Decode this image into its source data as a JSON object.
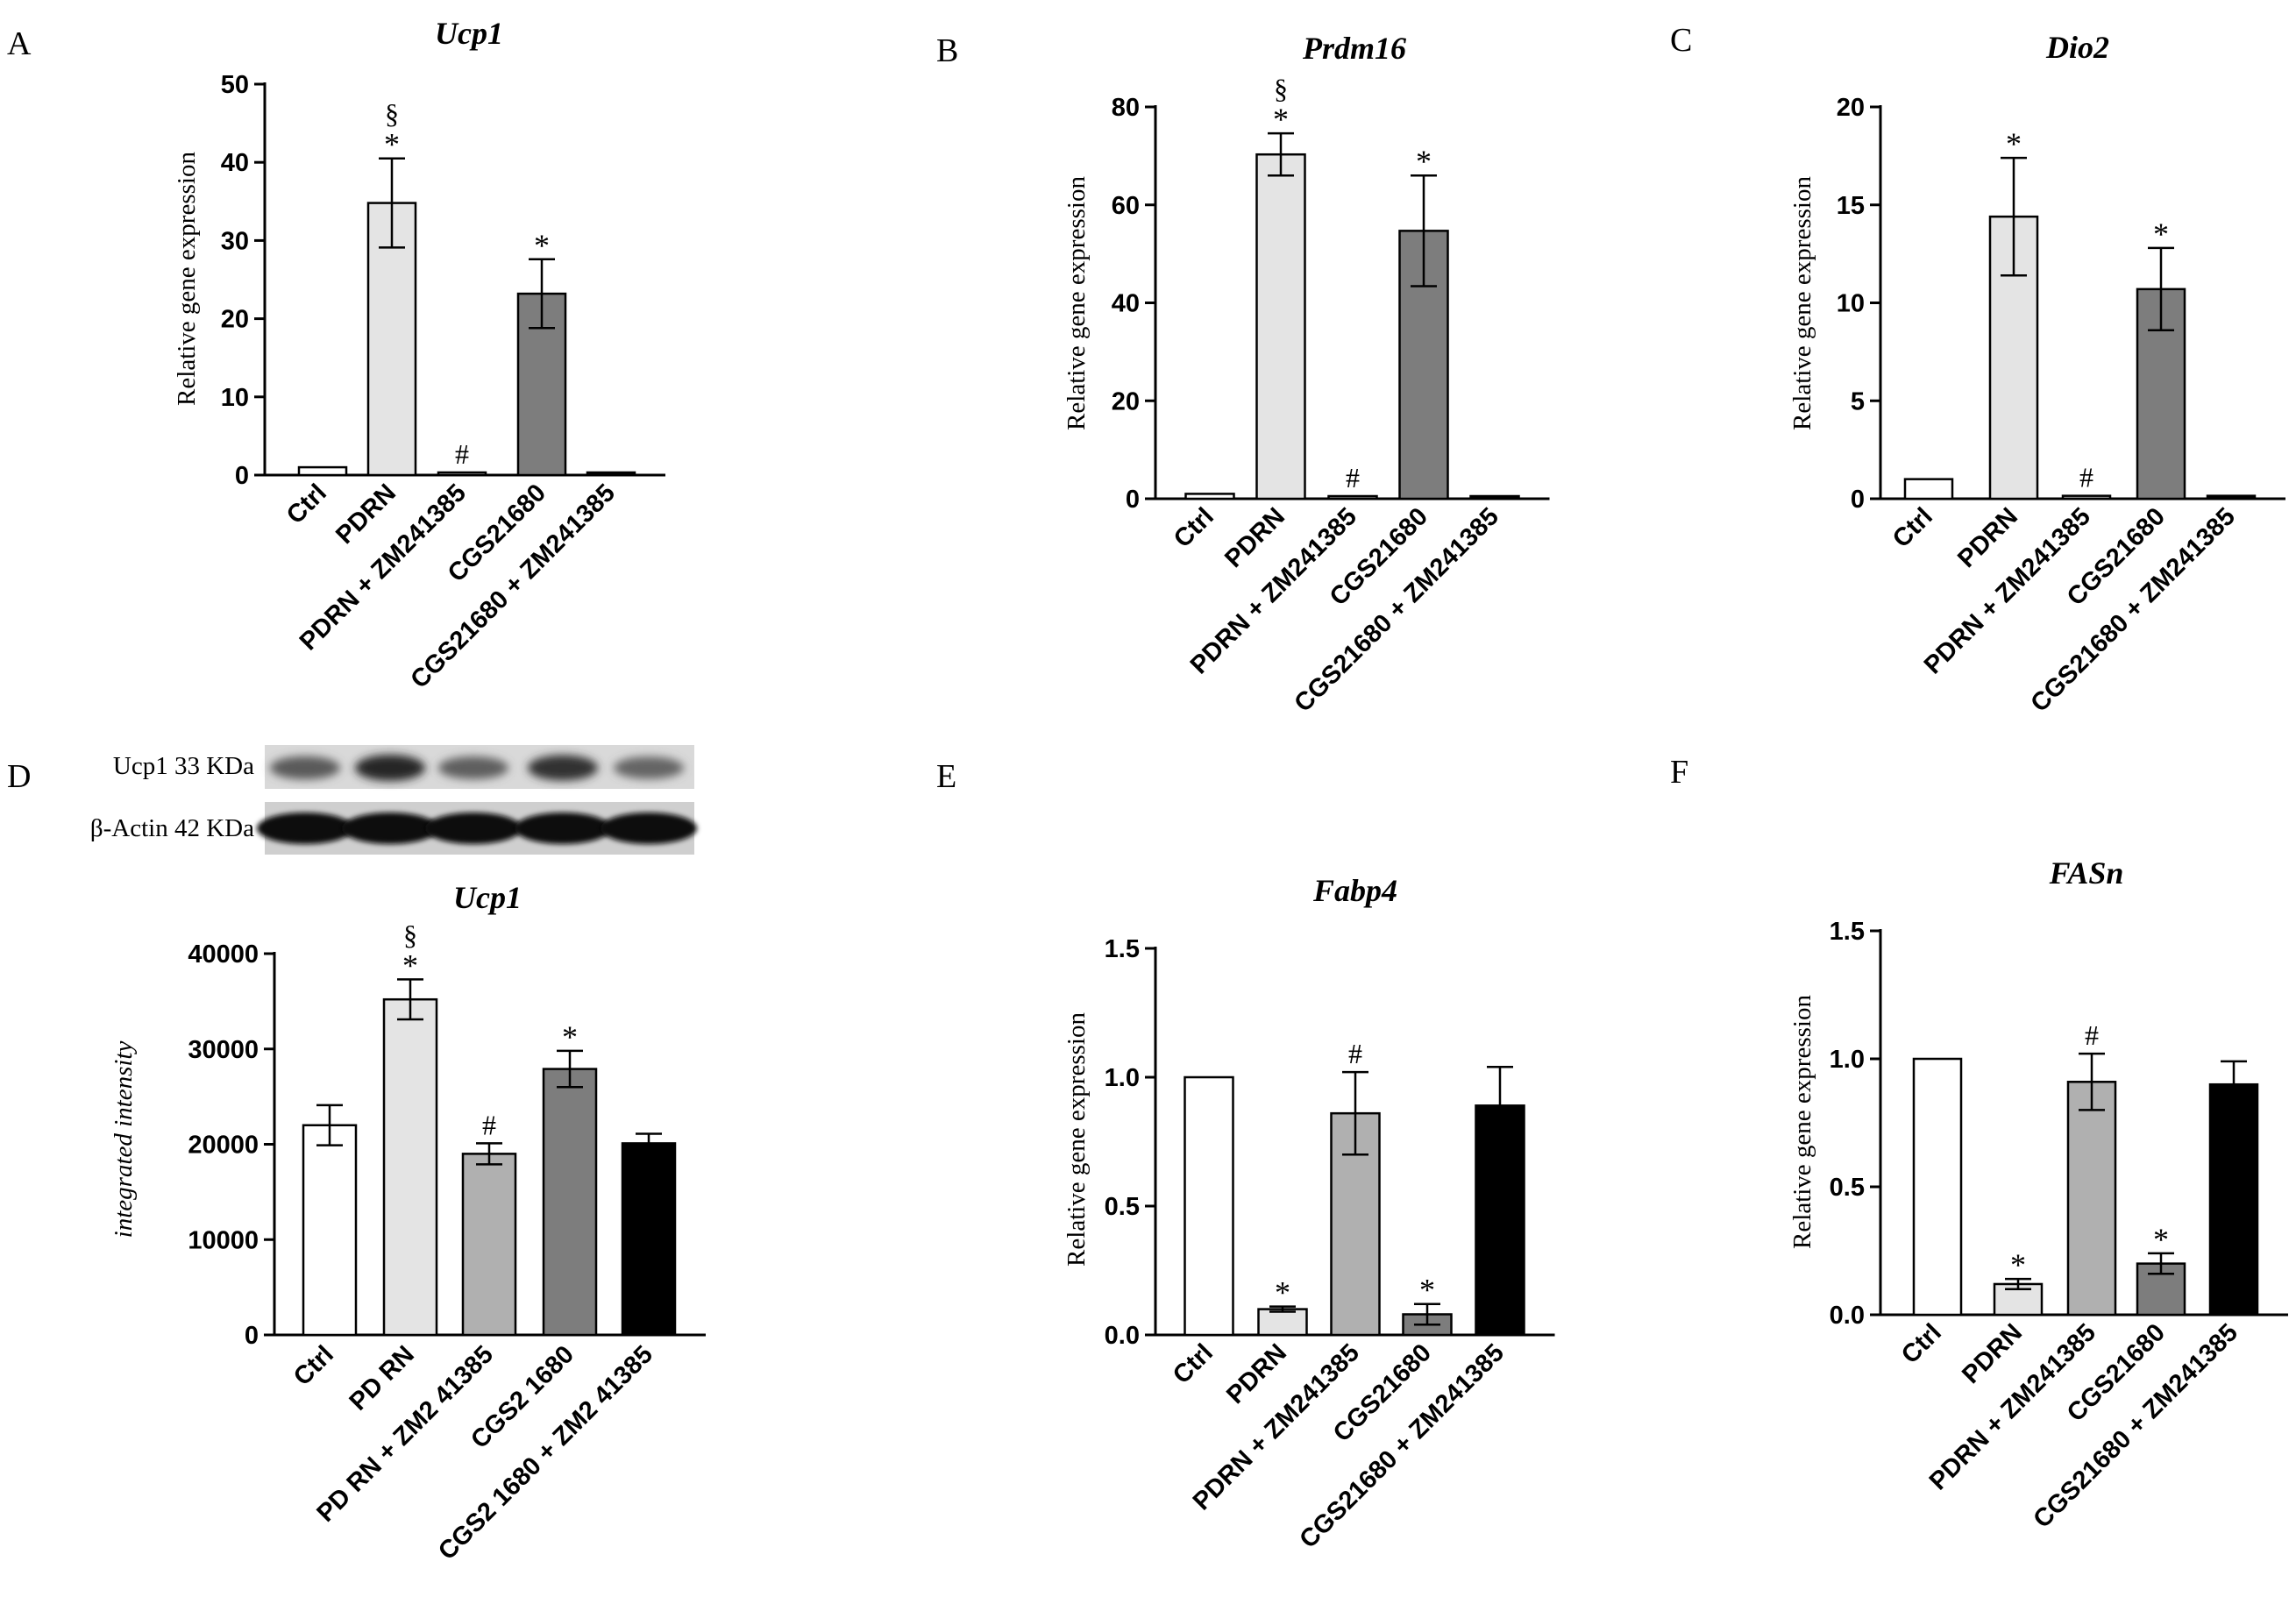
{
  "panel_letters": [
    "A",
    "B",
    "C",
    "D",
    "E",
    "F"
  ],
  "blot": {
    "labels": [
      "Ucp1 33 KDa",
      "β-Actin 42 KDa"
    ],
    "ucp1_relative_intensity": [
      0.55,
      1.0,
      0.5,
      0.9,
      0.45
    ]
  },
  "colors": {
    "Ctrl": "#ffffff",
    "PDRN": "#e4e4e4",
    "PDRN + ZM241385": "#b0b0b0",
    "CGS21680": "#7d7d7d",
    "CGS21680 + ZM241385": "#000000"
  },
  "chart_data": [
    {
      "panel": "A",
      "type": "bar",
      "title": "Ucp1",
      "ylabel": "Relative gene expression",
      "categories": [
        "Ctrl",
        "PDRN",
        "PDRN + ZM241385",
        "CGS21680",
        "CGS21680 + ZM241385"
      ],
      "values": [
        1,
        34.8,
        0.1,
        23.2,
        0.2
      ],
      "errors": [
        0,
        5.7,
        0,
        4.4,
        0
      ],
      "bar_colors": [
        "#ffffff",
        "#e4e4e4",
        "#b0b0b0",
        "#7d7d7d",
        "#000000"
      ],
      "annotations": [
        "",
        "§\n*",
        "#",
        "*",
        ""
      ],
      "ylim": [
        0,
        50
      ],
      "yticks": [
        "0",
        "10",
        "20",
        "30",
        "40",
        "50"
      ]
    },
    {
      "panel": "B",
      "type": "bar",
      "title": "Prdm16",
      "ylabel": "Relative gene expression",
      "categories": [
        "Ctrl",
        "PDRN",
        "PDRN + ZM241385",
        "CGS21680",
        "CGS21680 + ZM241385"
      ],
      "values": [
        1,
        70.3,
        0.1,
        54.7,
        0.1
      ],
      "errors": [
        0,
        4.3,
        0,
        11.3,
        0
      ],
      "bar_colors": [
        "#ffffff",
        "#e4e4e4",
        "#b0b0b0",
        "#7d7d7d",
        "#000000"
      ],
      "annotations": [
        "",
        "§\n*",
        "#",
        "*",
        ""
      ],
      "ylim": [
        0,
        80
      ],
      "yticks": [
        "0",
        "20",
        "40",
        "60",
        "80"
      ]
    },
    {
      "panel": "C",
      "type": "bar",
      "title": "Dio2",
      "ylabel": "Relative gene expression",
      "categories": [
        "Ctrl",
        "PDRN",
        "PDRN + ZM241385",
        "CGS21680",
        "CGS21680 + ZM241385"
      ],
      "values": [
        1,
        14.4,
        0.15,
        10.7,
        0.15
      ],
      "errors": [
        0,
        3.0,
        0,
        2.1,
        0
      ],
      "bar_colors": [
        "#ffffff",
        "#e4e4e4",
        "#b0b0b0",
        "#7d7d7d",
        "#000000"
      ],
      "annotations": [
        "",
        "*",
        "#",
        "*",
        ""
      ],
      "ylim": [
        0,
        20
      ],
      "yticks": [
        "0",
        "5",
        "10",
        "15",
        "20"
      ]
    },
    {
      "panel": "D",
      "type": "bar",
      "title": "Ucp1",
      "ylabel": "integrated intensity",
      "categories": [
        "Ctrl",
        "PD RN",
        "PD RN + ZM2 41385",
        "CGS2 1680",
        "CGS2 1680 + ZM2 41385"
      ],
      "values": [
        22000,
        35200,
        19000,
        27900,
        20100
      ],
      "errors": [
        2100,
        2100,
        1100,
        1900,
        1000
      ],
      "bar_colors": [
        "#ffffff",
        "#e4e4e4",
        "#b0b0b0",
        "#7d7d7d",
        "#000000"
      ],
      "annotations": [
        "",
        "§\n*",
        "#",
        "*",
        ""
      ],
      "ylim": [
        0,
        40000
      ],
      "yticks": [
        "0",
        "10000",
        "20000",
        "30000",
        "40000"
      ]
    },
    {
      "panel": "E",
      "type": "bar",
      "title": "Fabp4",
      "ylabel": "Relative gene expression",
      "categories": [
        "Ctrl",
        "PDRN",
        "PDRN + ZM241385",
        "CGS21680",
        "CGS21680 + ZM241385"
      ],
      "values": [
        1.0,
        0.1,
        0.86,
        0.08,
        0.89
      ],
      "errors": [
        0,
        0.01,
        0.16,
        0.04,
        0.15
      ],
      "bar_colors": [
        "#ffffff",
        "#e4e4e4",
        "#b0b0b0",
        "#7d7d7d",
        "#000000"
      ],
      "annotations": [
        "",
        "*",
        "#",
        "*",
        ""
      ],
      "ylim": [
        0,
        1.5
      ],
      "yticks": [
        "0.0",
        "0.5",
        "1.0",
        "1.5"
      ]
    },
    {
      "panel": "F",
      "type": "bar",
      "title": "FASn",
      "ylabel": "Relative gene expression",
      "categories": [
        "Ctrl",
        "PDRN",
        "PDRN + ZM241385",
        "CGS21680",
        "CGS21680 + ZM241385"
      ],
      "values": [
        1.0,
        0.12,
        0.91,
        0.2,
        0.9
      ],
      "errors": [
        0,
        0.02,
        0.11,
        0.04,
        0.09
      ],
      "bar_colors": [
        "#ffffff",
        "#e4e4e4",
        "#b0b0b0",
        "#7d7d7d",
        "#000000"
      ],
      "annotations": [
        "",
        "*",
        "#",
        "*",
        ""
      ],
      "ylim": [
        0,
        1.5
      ],
      "yticks": [
        "0.0",
        "0.5",
        "1.0",
        "1.5"
      ]
    }
  ]
}
